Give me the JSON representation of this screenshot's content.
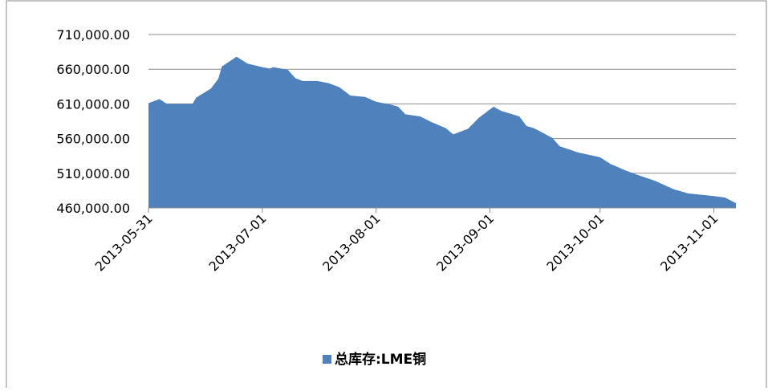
{
  "chart_data": {
    "type": "area",
    "color": "#4f81bd",
    "grid": true,
    "legend": "bottom",
    "series": [
      {
        "name": "总库存:LME铜",
        "color": "#4f81bd",
        "x": [
          "2013-05-31",
          "2013-06-03",
          "2013-06-05",
          "2013-06-12",
          "2013-06-13",
          "2013-06-17",
          "2013-06-19",
          "2013-06-20",
          "2013-06-24",
          "2013-06-27",
          "2013-07-01",
          "2013-07-03",
          "2013-07-04",
          "2013-07-08",
          "2013-07-10",
          "2013-07-12",
          "2013-07-16",
          "2013-07-19",
          "2013-07-22",
          "2013-07-25",
          "2013-07-29",
          "2013-08-01",
          "2013-08-05",
          "2013-08-07",
          "2013-08-09",
          "2013-08-13",
          "2013-08-16",
          "2013-08-20",
          "2013-08-22",
          "2013-08-26",
          "2013-08-29",
          "2013-09-02",
          "2013-09-04",
          "2013-09-09",
          "2013-09-11",
          "2013-09-13",
          "2013-09-18",
          "2013-09-20",
          "2013-09-25",
          "2013-10-01",
          "2013-10-04",
          "2013-10-08",
          "2013-10-11",
          "2013-10-16",
          "2013-10-21",
          "2013-10-25",
          "2013-11-01",
          "2013-11-04",
          "2013-11-07"
        ],
        "values": [
          611000,
          617000,
          610000,
          610000,
          619000,
          632000,
          646000,
          664000,
          678000,
          668000,
          663000,
          661000,
          663000,
          659000,
          647000,
          643000,
          643000,
          640000,
          634000,
          622000,
          620000,
          613000,
          609000,
          606000,
          595000,
          592000,
          584000,
          575000,
          566000,
          574000,
          590000,
          606000,
          600000,
          592000,
          578000,
          575000,
          561000,
          549000,
          540000,
          533000,
          523000,
          514000,
          508000,
          499000,
          487000,
          481000,
          477000,
          475000,
          467000
        ]
      }
    ],
    "xlim": [
      "2013-05-31",
      "2013-11-07"
    ],
    "xticks": [
      "2013-05-31",
      "2013-07-01",
      "2013-08-01",
      "2013-09-01",
      "2013-10-01",
      "2013-11-01"
    ],
    "ylim": [
      460000,
      710000
    ],
    "yticks": [
      {
        "value": 460000,
        "label": "460,000.00"
      },
      {
        "value": 510000,
        "label": "510,000.00"
      },
      {
        "value": 560000,
        "label": "560,000.00"
      },
      {
        "value": 610000,
        "label": "610,000.00"
      },
      {
        "value": 660000,
        "label": "660,000.00"
      },
      {
        "value": 710000,
        "label": "710,000.00"
      }
    ]
  }
}
